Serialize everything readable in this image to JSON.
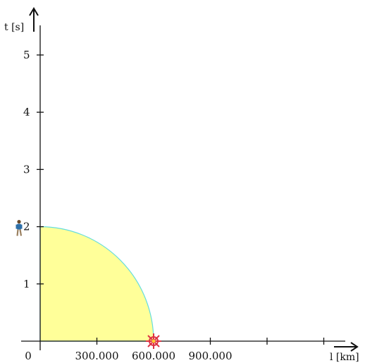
{
  "chart_data": {
    "type": "area",
    "x_axis": {
      "label": "l [km]",
      "ticks": [
        {
          "value": 0,
          "label": "0"
        },
        {
          "value": 300000,
          "label": "300.000"
        },
        {
          "value": 600000,
          "label": "600.000"
        },
        {
          "value": 900000,
          "label": "900.000"
        },
        {
          "value": 1200000,
          "label": ""
        },
        {
          "value": 1500000,
          "label": ""
        }
      ],
      "range": [
        0,
        1600000
      ]
    },
    "y_axis": {
      "label": "t [s]",
      "ticks": [
        {
          "value": 1,
          "label": "1"
        },
        {
          "value": 2,
          "label": "2"
        },
        {
          "value": 3,
          "label": "3"
        },
        {
          "value": 4,
          "label": "4"
        },
        {
          "value": 5,
          "label": "5"
        }
      ],
      "range": [
        0,
        5.6
      ]
    },
    "region": {
      "shape": "quarter-circle",
      "x_radius": 600000,
      "y_radius": 2,
      "fill": "#ffff99",
      "stroke": "#66dddd"
    },
    "observer": {
      "icon": "person-icon",
      "t": 2
    },
    "event": {
      "icon": "explosion-icon",
      "x": 600000,
      "color": "#dd3344"
    },
    "grid": false
  }
}
